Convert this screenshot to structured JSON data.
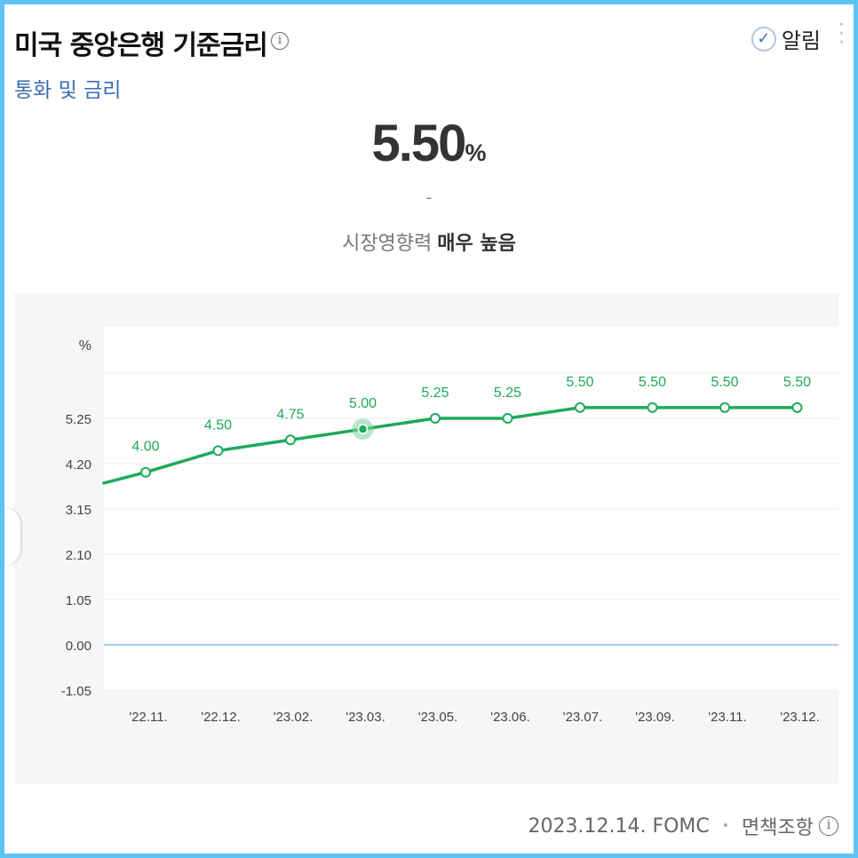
{
  "header": {
    "title": "미국 중앙은행 기준금리",
    "title_info_icon": "info-icon",
    "category_link": "통화 및 금리",
    "alarm_icon": "check-circle-icon",
    "alarm_label": "알림",
    "more_icon": "more-vertical-icon"
  },
  "summary": {
    "value": "5.50",
    "unit": "%",
    "change": "-",
    "impact_label": "시장영향력",
    "impact_value": "매우 높음"
  },
  "chart_data": {
    "type": "line",
    "ylabel": "%",
    "yticks": [
      "-1.05",
      "0.00",
      "1.05",
      "2.10",
      "3.15",
      "4.20",
      "5.25"
    ],
    "ylim": [
      -1.05,
      6.3
    ],
    "categories": [
      "'22.11.",
      "'22.12.",
      "'23.02.",
      "'23.03.",
      "'23.05.",
      "'23.06.",
      "'23.07.",
      "'23.09.",
      "'23.11.",
      "'23.12."
    ],
    "values": [
      4.0,
      4.5,
      4.75,
      5.0,
      5.25,
      5.25,
      5.5,
      5.5,
      5.5,
      5.5
    ],
    "data_labels": [
      "4.00",
      "4.50",
      "4.75",
      "5.00",
      "5.25",
      "5.25",
      "5.50",
      "5.50",
      "5.50",
      "5.50"
    ],
    "previous_value": 3.75,
    "highlighted_index": 3,
    "line_color": "#1eaa5a",
    "zero_line_color": "#a9cdf0",
    "grid": true
  },
  "footer": {
    "date_source": "2023.12.14. FOMC",
    "disclaimer": "면책조항",
    "info_icon": "info-icon"
  }
}
